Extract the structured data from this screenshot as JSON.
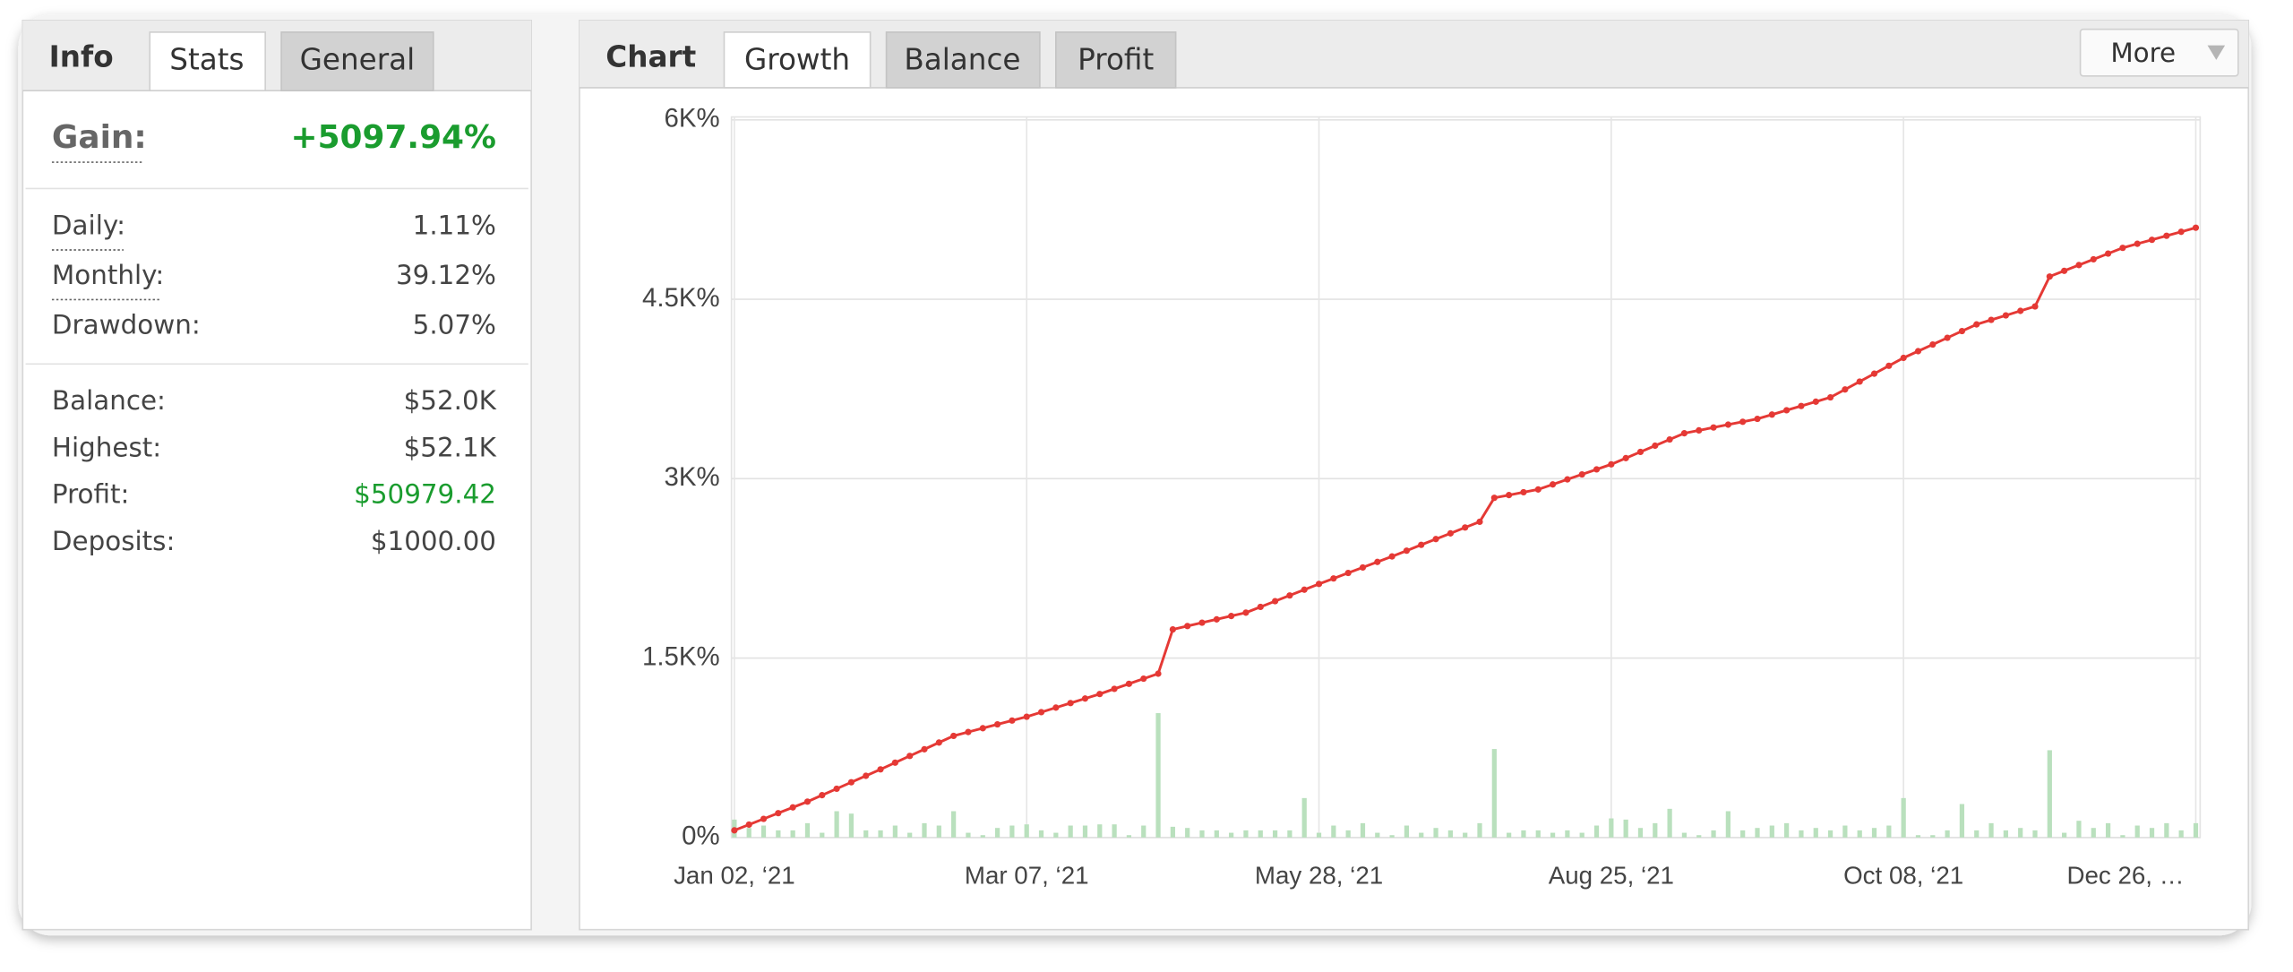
{
  "info": {
    "tabs": [
      "Info",
      "Stats",
      "General"
    ],
    "gain_label": "Gain:",
    "gain_value": "+5097.94%",
    "rows": [
      {
        "label": "Daily:",
        "value": "1.11%"
      },
      {
        "label": "Monthly:",
        "value": "39.12%"
      },
      {
        "label": "Drawdown:",
        "value": "5.07%"
      },
      {
        "label": "Balance:",
        "value": "$52.0K"
      },
      {
        "label": "Highest:",
        "value": "$52.1K"
      },
      {
        "label": "Profit:",
        "value": "$50979.42"
      },
      {
        "label": "Deposits:",
        "value": "$1000.00"
      }
    ]
  },
  "chart_panel": {
    "tabs": [
      "Chart",
      "Growth",
      "Balance",
      "Profit"
    ],
    "more": "More"
  },
  "chart_data": {
    "type": "line",
    "categories": [
      "Jan 02, ‘21",
      null,
      null,
      null,
      null,
      null,
      null,
      null,
      null,
      null,
      null,
      null,
      null,
      null,
      null,
      null,
      null,
      null,
      null,
      null,
      "Mar 07, ‘21",
      null,
      null,
      null,
      null,
      null,
      null,
      null,
      null,
      null,
      null,
      null,
      null,
      null,
      null,
      null,
      null,
      null,
      null,
      null,
      "May 28, ‘21",
      null,
      null,
      null,
      null,
      null,
      null,
      null,
      null,
      null,
      null,
      null,
      null,
      null,
      null,
      null,
      null,
      null,
      null,
      null,
      "Aug 25, ‘21",
      null,
      null,
      null,
      null,
      null,
      null,
      null,
      null,
      null,
      null,
      null,
      null,
      null,
      null,
      null,
      null,
      null,
      null,
      null,
      "Oct 08, ‘21",
      null,
      null,
      null,
      null,
      null,
      null,
      null,
      null,
      null,
      null,
      null,
      null,
      null,
      null,
      null,
      null,
      null,
      null,
      null,
      "Dec 26, …"
    ],
    "series": [
      {
        "type": "line",
        "color": "#e53935",
        "values": [
          60,
          108,
          156,
          204,
          252,
          300,
          354,
          408,
          462,
          516,
          570,
          626,
          682,
          738,
          794,
          850,
          882,
          914,
          946,
          978,
          1010,
          1048,
          1086,
          1124,
          1162,
          1200,
          1243,
          1285,
          1328,
          1370,
          1740,
          1768,
          1796,
          1824,
          1852,
          1880,
          1928,
          1976,
          2024,
          2072,
          2120,
          2166,
          2212,
          2258,
          2304,
          2350,
          2398,
          2447,
          2495,
          2543,
          2592,
          2640,
          2840,
          2863,
          2887,
          2910,
          2952,
          2994,
          3036,
          3078,
          3120,
          3172,
          3224,
          3276,
          3328,
          3380,
          3404,
          3428,
          3452,
          3476,
          3500,
          3536,
          3572,
          3608,
          3644,
          3680,
          3746,
          3812,
          3878,
          3944,
          4010,
          4066,
          4122,
          4178,
          4234,
          4290,
          4328,
          4365,
          4403,
          4440,
          4690,
          4738,
          4786,
          4834,
          4882,
          4930,
          4964,
          4997,
          5031,
          5064,
          5098
        ]
      },
      {
        "type": "bar",
        "color": "#b9e0bd",
        "values": [
          150,
          80,
          100,
          60,
          60,
          120,
          40,
          220,
          200,
          60,
          60,
          100,
          40,
          120,
          100,
          220,
          40,
          20,
          80,
          100,
          110,
          60,
          40,
          100,
          100,
          110,
          110,
          20,
          100,
          1040,
          90,
          80,
          60,
          60,
          40,
          60,
          60,
          60,
          60,
          330,
          40,
          100,
          60,
          120,
          40,
          20,
          100,
          40,
          80,
          60,
          40,
          120,
          740,
          40,
          60,
          60,
          40,
          60,
          40,
          100,
          160,
          150,
          80,
          120,
          240,
          40,
          20,
          60,
          220,
          60,
          80,
          100,
          120,
          60,
          80,
          60,
          100,
          60,
          80,
          100,
          330,
          20,
          20,
          60,
          280,
          60,
          120,
          60,
          80,
          60,
          730,
          40,
          140,
          80,
          120,
          20,
          100,
          80,
          120,
          60,
          120
        ]
      }
    ],
    "ylim": [
      0,
      6000
    ],
    "yticks": [
      {
        "value": 0,
        "label": "0%"
      },
      {
        "value": 1500,
        "label": "1.5K%"
      },
      {
        "value": 3000,
        "label": "3K%"
      },
      {
        "value": 4500,
        "label": "4.5K%"
      },
      {
        "value": 6000,
        "label": "6K%"
      }
    ],
    "grid": true
  }
}
